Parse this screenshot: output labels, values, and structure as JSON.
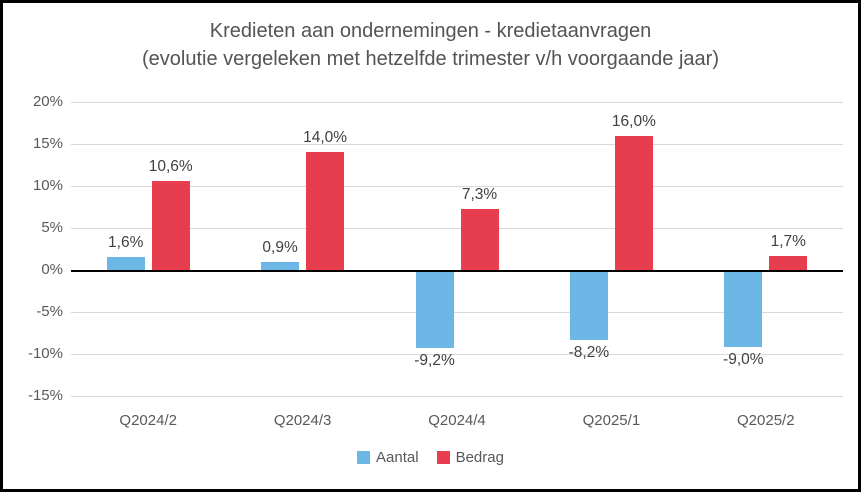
{
  "window": {
    "kind": "bar-chart"
  },
  "colors": {
    "aantal_blue": "#6DB7E6",
    "bedrag_red": "#E63E4E",
    "gridline": "#d9d9d9",
    "zero_line": "#000000",
    "title_text": "#545454",
    "tick_text": "#595959",
    "value_label_text": "#404040",
    "border": "#000000",
    "background": "#ffffff"
  },
  "chart_data": {
    "type": "bar",
    "title": "Kredieten aan ondernemingen - kredietaanvragen",
    "subtitle": "(evolutie vergeleken met hetzelfde trimester v/h voorgaande jaar)",
    "categories": [
      "Q2024/2",
      "Q2024/3",
      "Q2024/4",
      "Q2025/1",
      "Q2025/2"
    ],
    "series": [
      {
        "name": "Aantal",
        "color": "#6DB7E6",
        "values": [
          1.6,
          0.9,
          -9.2,
          -8.2,
          -9.0
        ],
        "labels": [
          "1,6%",
          "0,9%",
          "-9,2%",
          "-8,2%",
          "-9,0%"
        ]
      },
      {
        "name": "Bedrag",
        "color": "#E63E4E",
        "values": [
          10.6,
          14.0,
          7.3,
          16.0,
          1.7
        ],
        "labels": [
          "10,6%",
          "14,0%",
          "7,3%",
          "16,0%",
          "1,7%"
        ]
      }
    ],
    "xlabel": "",
    "ylabel": "",
    "ylim": [
      -15,
      20
    ],
    "y_tick_step": 5,
    "y_ticks": [
      20,
      15,
      10,
      5,
      0,
      -5,
      -10,
      -15
    ],
    "y_tick_labels": [
      "20%",
      "15%",
      "10%",
      "5%",
      "0%",
      "-5%",
      "-10%",
      "-15%"
    ],
    "grid": true,
    "legend_position": "bottom",
    "legend_entries": [
      "Aantal",
      "Bedrag"
    ]
  }
}
